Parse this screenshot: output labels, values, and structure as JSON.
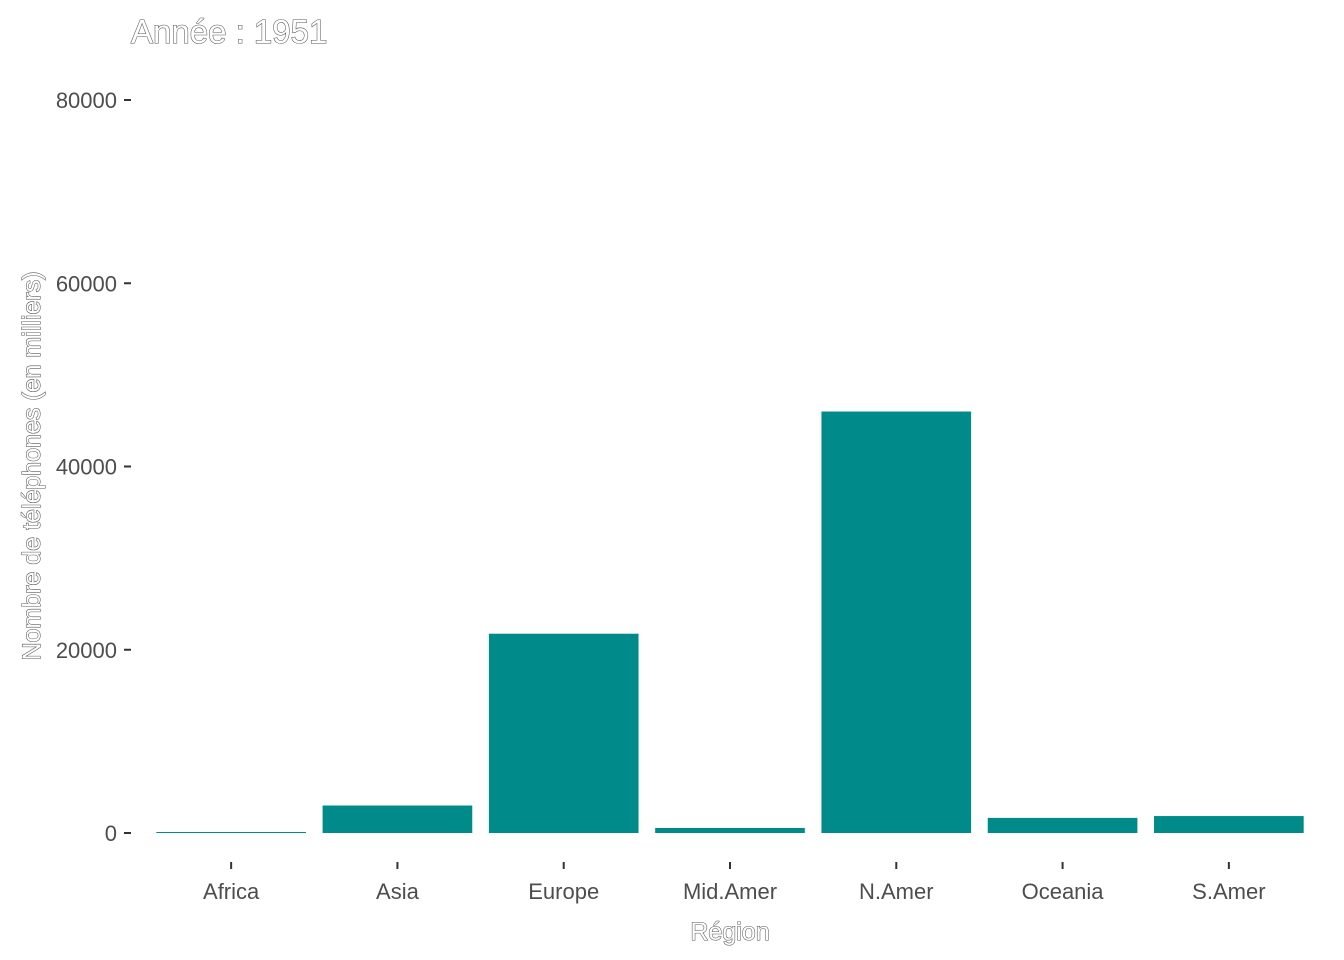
{
  "chart_data": {
    "type": "bar",
    "title": "Année : 1951",
    "xlabel": "Région",
    "ylabel": "Nombre de téléphones (en milliers)",
    "categories": [
      "Africa",
      "Asia",
      "Europe",
      "Mid.Amer",
      "N.Amer",
      "Oceania",
      "S.Amer"
    ],
    "values": [
      100,
      3000,
      21750,
      550,
      46000,
      1650,
      1850
    ],
    "ylim": [
      0,
      80000
    ],
    "yticks": [
      0,
      20000,
      40000,
      60000,
      80000
    ],
    "yticklabels": [
      "0",
      "20000",
      "40000",
      "60000",
      "80000"
    ],
    "grid": false,
    "legend": "none",
    "bar_color": "#008B8B"
  }
}
